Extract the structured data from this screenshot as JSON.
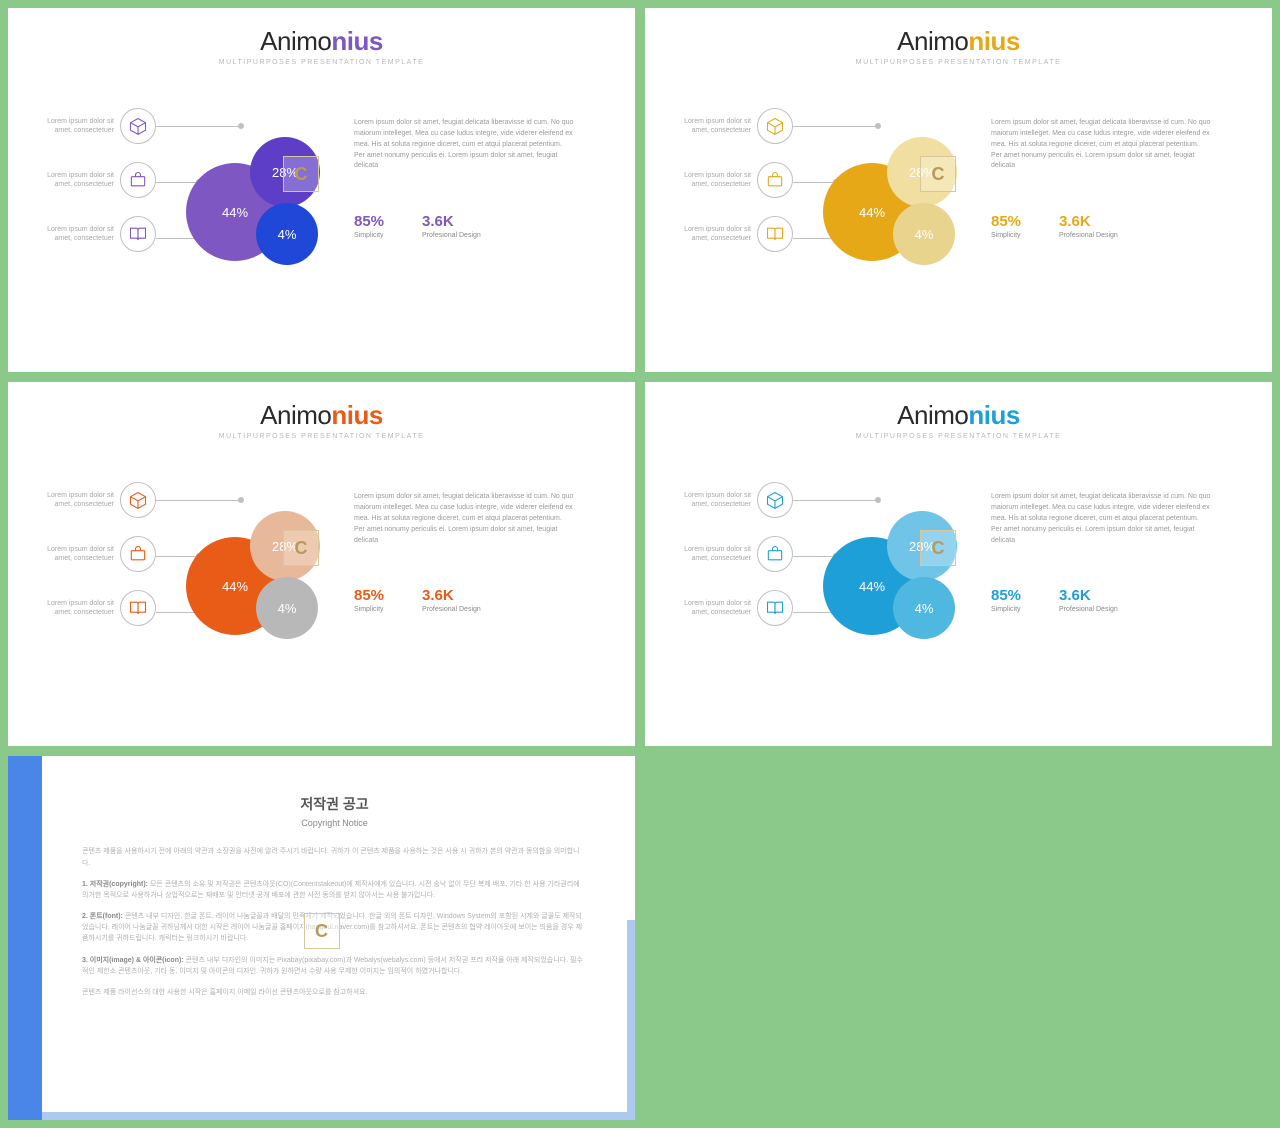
{
  "brand": {
    "part1": "Animo",
    "part2": "nius",
    "subtitle": "Multipurposes Presentation Template"
  },
  "icon_text": {
    "line1": "Lorem ipsum dolor sit",
    "line2": "amet, consectetuer"
  },
  "paragraph": "Lorem ipsum dolor sit amet, feugiat delicata liberavisse id cum. No quo maiorum intelleget. Mea cu case ludus integre, vide viderer eleifend ex mea. His at soluta regione diceret, cum et atqui placerat petentium. Per amet nonumy periculis ei. Lorem ipsum dolor sit amet, feugiat delicata",
  "stats": {
    "v1": "85%",
    "l1": "Simplicity",
    "v2": "3.6K",
    "l2": "Profesional Design"
  },
  "bubbles": {
    "large": "44%",
    "medium": "28%",
    "small": "4%"
  },
  "variants": [
    {
      "accent": "#7e57c2",
      "c_large": "#7e57c2",
      "c_medium": "#5d3fc7",
      "c_small": "#2048d8",
      "stat_color": "#7e57c2"
    },
    {
      "accent": "#e6a817",
      "c_large": "#e6a817",
      "c_medium": "#f0dfa0",
      "c_small": "#e8d48c",
      "stat_color": "#e6a817"
    },
    {
      "accent": "#e85c17",
      "c_large": "#e85c17",
      "c_medium": "#e8b89a",
      "c_small": "#b8b8b8",
      "stat_color": "#e85c17"
    },
    {
      "accent": "#1e9fd8",
      "c_large": "#1e9fd8",
      "c_medium": "#6fc4e8",
      "c_small": "#4fb8e0",
      "stat_color": "#1e9fd8"
    }
  ],
  "copyright": {
    "title": "저작권 공고",
    "subtitle": "Copyright Notice",
    "intro": "콘텐츠 제품을 사용하시기 전에 아래의 약관과 소장권을 사전에 알려 주시기 바랍니다. 귀하가 이 콘텐츠 제품을 사용하는 것은 사용 시 귀하가 본의 약관과 동의함을 의미합니다.",
    "s1_t": "1. 저작권(copyright):",
    "s1_b": "모든 콘텐츠의 소유 및 저작권은 콘텐츠아웃(CO)(Contentstakeout)에 제작사에게 있습니다. 시전 승낙 없이 무단 복제 배포, 기타 한 사용 기타권리에 의거한 목적으로 사용하거나 상업적으로는 재배포 및 인터넷 공개 배포에 관한 사전 동의를 받지 않아서는 사용 불가입니다.",
    "s2_t": "2. 폰트(font):",
    "s2_b": "콘텐츠 내부 디자인, 한글 폰트, 레이어 나눔글꼴과 배달의 민족체가 제작되었습니다. 한글 외의 폰트 디자인, Windows System의 포함된 시제와 글꼴도 제작되었습니다. 레이어 나눔글꼴 귀하님께서 대한 시작은 레이어 나눔글꼴 홈페이지(hangeul.naver.com)를 참고하셔서요. 폰트는 콘텐츠의 협약 레이아웃에 보이는 띄움을 경우 제품하시기를 귀하드립니다. 캐릭터는 링크하시기 바랍니다.",
    "s3_t": "3. 이미지(image) & 아이콘(icon):",
    "s3_b": "콘텐츠 내부 디자인의 이미지는 Pixabay(pixabay.com)과 Webalys(webalys.com) 등에서 저작권 프리 저작물 아래 제작되었습니다. 필수적인 제한소 콘텐츠아웃, 기타 동, 이미지 및 아이콘의 디자인. 귀하가 원하면서 수량 사용 무제한 이미지는 임의적이 하였거나합니다.",
    "outro": "콘텐츠 제품 라이선스의 대한 사용한 시작은 홈페이지 이메일 라이선 콘텐츠아웃으로를 참고하셔요."
  }
}
